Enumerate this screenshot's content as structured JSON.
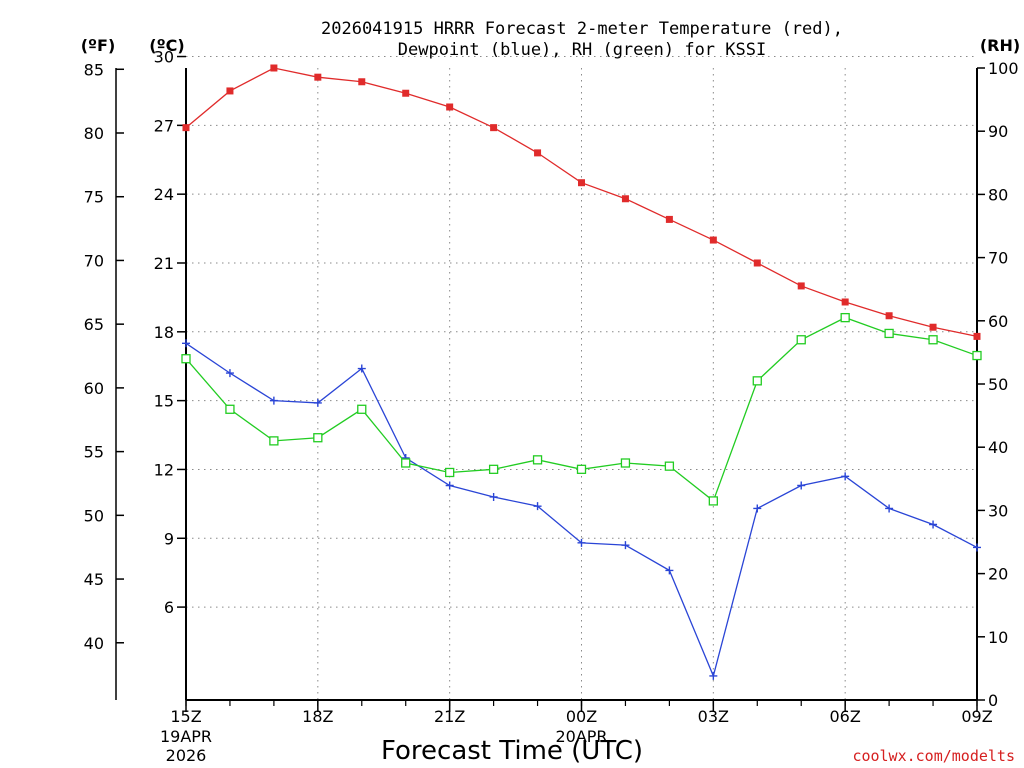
{
  "title": {
    "line1": "2026041915 HRRR Forecast 2-meter Temperature (red),",
    "line2": "Dewpoint (blue), RH (green) for KSSI"
  },
  "units": {
    "fahrenheit": "(ºF)",
    "celsius": "(ºC)",
    "rh": "(RH)"
  },
  "credit": "coolwx.com/modelts",
  "colors": {
    "temperature": "#e02b2b",
    "dewpoint": "#2a45d6",
    "rh": "#22cc22",
    "grid": "#8a8a8a",
    "credit": "#d62020"
  },
  "chart_data": {
    "type": "line",
    "xlabel": "Forecast Time (UTC)",
    "x_hours": [
      0,
      1,
      2,
      3,
      4,
      5,
      6,
      7,
      8,
      9,
      10,
      11,
      12,
      13,
      14,
      15,
      16,
      17,
      18
    ],
    "xlim": [
      0,
      18
    ],
    "x_ticks": [
      {
        "hour": 0,
        "label": "15Z",
        "sub": [
          "19APR",
          "2026"
        ]
      },
      {
        "hour": 3,
        "label": "18Z",
        "sub": []
      },
      {
        "hour": 6,
        "label": "21Z",
        "sub": []
      },
      {
        "hour": 9,
        "label": "00Z",
        "sub": [
          "20APR"
        ]
      },
      {
        "hour": 12,
        "label": "03Z",
        "sub": []
      },
      {
        "hour": 15,
        "label": "06Z",
        "sub": []
      },
      {
        "hour": 18,
        "label": "09Z",
        "sub": []
      }
    ],
    "y_left_c": {
      "label": "(ºC)",
      "lim": [
        1.95,
        29.5
      ],
      "ticks": [
        6,
        9,
        12,
        15,
        18,
        21,
        24,
        27,
        30
      ]
    },
    "y_left_f": {
      "label": "(ºF)",
      "ticks": [
        40,
        45,
        50,
        55,
        60,
        65,
        70,
        75,
        80,
        85
      ]
    },
    "y_right_rh": {
      "label": "(RH)",
      "lim": [
        0,
        100
      ],
      "ticks": [
        0,
        10,
        20,
        30,
        40,
        50,
        60,
        70,
        80,
        90,
        100
      ]
    },
    "series": [
      {
        "name": "Temperature",
        "axis": "c",
        "marker": "filled-square",
        "values": [
          26.9,
          28.5,
          29.5,
          29.1,
          28.9,
          28.4,
          27.8,
          26.9,
          25.8,
          24.5,
          23.8,
          22.9,
          22.0,
          21.0,
          20.0,
          19.3,
          18.7,
          18.2,
          17.8
        ]
      },
      {
        "name": "Dewpoint",
        "axis": "c",
        "marker": "plus",
        "values": [
          17.5,
          16.2,
          15.0,
          14.9,
          16.4,
          12.5,
          11.3,
          10.8,
          10.4,
          8.8,
          8.7,
          7.6,
          3.0,
          10.3,
          11.3,
          11.7,
          10.3,
          9.6,
          8.6
        ]
      },
      {
        "name": "RH",
        "axis": "rh",
        "marker": "open-square",
        "values": [
          54,
          46,
          41,
          41.5,
          46,
          37.5,
          36,
          36.5,
          38,
          36.5,
          37.5,
          37,
          31.5,
          50.5,
          57,
          60.5,
          58,
          57,
          54.5
        ]
      }
    ]
  }
}
